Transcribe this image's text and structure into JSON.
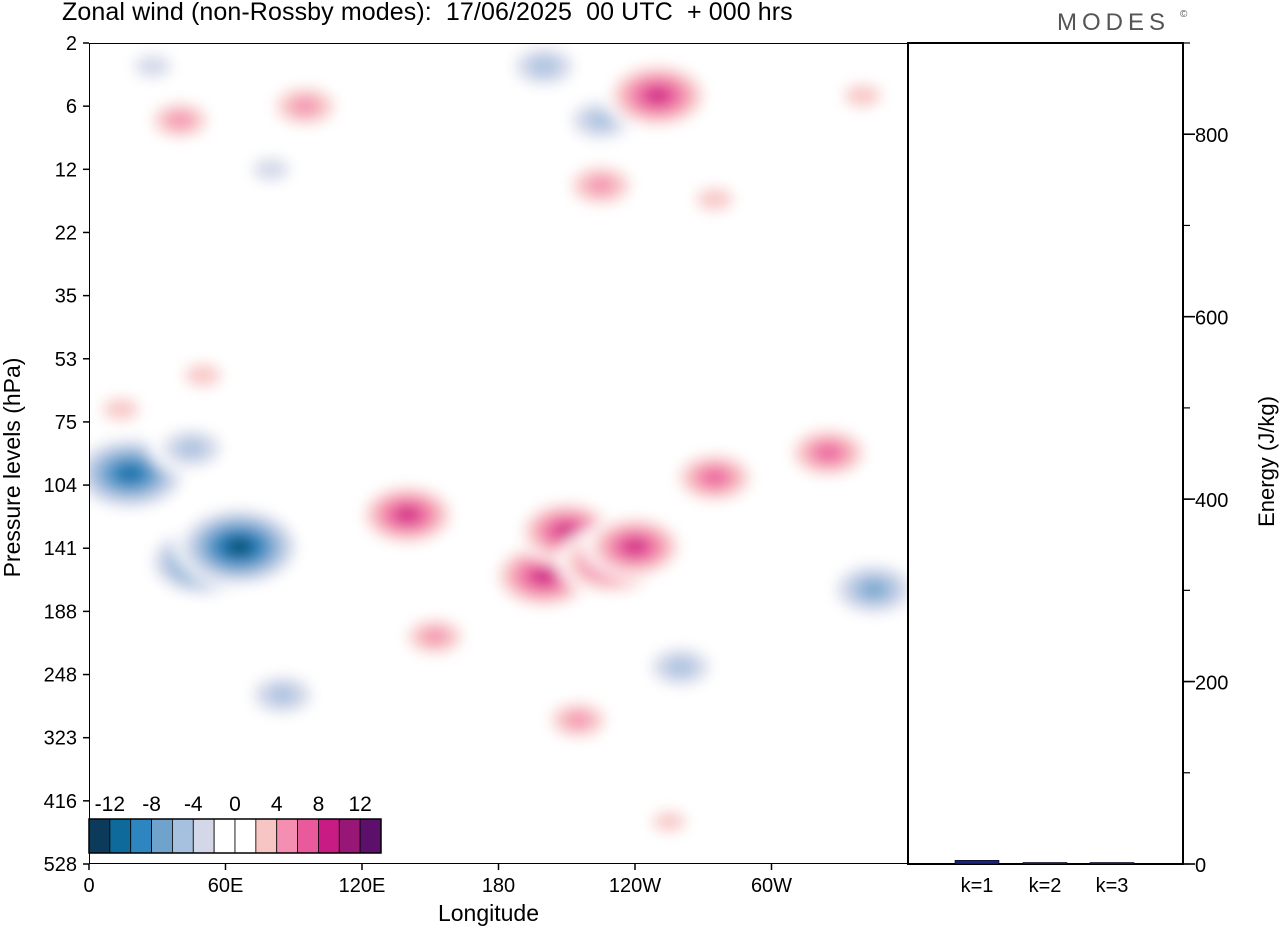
{
  "header": {
    "title": "Zonal wind (non-Rossby modes):  17/06/2025  00 UTC  + 000 hrs",
    "brand": "MODES",
    "brand_mark": "©"
  },
  "chart_data": [
    {
      "type": "heatmap",
      "title": "Zonal wind (non-Rossby modes):  17/06/2025  00 UTC  + 000 hrs",
      "xlabel": "Longitude",
      "ylabel": "Pressure levels (hPa)",
      "x_ticks": [
        "0",
        "60E",
        "120E",
        "180",
        "120W",
        "60W"
      ],
      "x_tick_degrees": [
        0,
        60,
        120,
        180,
        240,
        300
      ],
      "x_range_degrees": [
        0,
        360
      ],
      "y_ticks": [
        "2",
        "6",
        "12",
        "22",
        "35",
        "53",
        "75",
        "104",
        "141",
        "188",
        "248",
        "323",
        "416",
        "528"
      ],
      "colorbar": {
        "labels": [
          "-12",
          "-8",
          "-4",
          "0",
          "4",
          "8",
          "12"
        ],
        "levels": [
          -14,
          -12,
          -10,
          -8,
          -6,
          -4,
          -2,
          0,
          2,
          4,
          6,
          8,
          10,
          12,
          14
        ],
        "colors": [
          "#0c3a5b",
          "#0f6a9c",
          "#2e86c1",
          "#6fa3cc",
          "#a6c1df",
          "#d3d7e8",
          "#ffffff",
          "#ffffff",
          "#f7c6c4",
          "#f48fb1",
          "#e85a9b",
          "#c81b83",
          "#981675",
          "#5c0f6b"
        ],
        "label_levels": [
          -12,
          -8,
          -4,
          0,
          4,
          8,
          12
        ]
      },
      "features": [
        {
          "lon": 18,
          "plev": 98,
          "value": -12
        },
        {
          "lon": 45,
          "plev": 86,
          "value": -6
        },
        {
          "lon": 50,
          "plev": 150,
          "value": -11
        },
        {
          "lon": 66,
          "plev": 140,
          "value": -13
        },
        {
          "lon": 85,
          "plev": 270,
          "value": -6
        },
        {
          "lon": 28,
          "plev": 3,
          "value": -4
        },
        {
          "lon": 80,
          "plev": 12,
          "value": -4
        },
        {
          "lon": 200,
          "plev": 3,
          "value": -6
        },
        {
          "lon": 225,
          "plev": 7,
          "value": -6
        },
        {
          "lon": 345,
          "plev": 170,
          "value": -8
        },
        {
          "lon": 260,
          "plev": 240,
          "value": -6
        },
        {
          "lon": 140,
          "plev": 120,
          "value": 9
        },
        {
          "lon": 152,
          "plev": 210,
          "value": 5
        },
        {
          "lon": 200,
          "plev": 160,
          "value": 10
        },
        {
          "lon": 210,
          "plev": 130,
          "value": 9
        },
        {
          "lon": 230,
          "plev": 150,
          "value": 10
        },
        {
          "lon": 240,
          "plev": 140,
          "value": 9
        },
        {
          "lon": 215,
          "plev": 300,
          "value": 5
        },
        {
          "lon": 275,
          "plev": 100,
          "value": 7
        },
        {
          "lon": 325,
          "plev": 88,
          "value": 7
        },
        {
          "lon": 250,
          "plev": 5,
          "value": 10
        },
        {
          "lon": 225,
          "plev": 14,
          "value": 6
        },
        {
          "lon": 275,
          "plev": 16,
          "value": 4
        },
        {
          "lon": 95,
          "plev": 6,
          "value": 6
        },
        {
          "lon": 40,
          "plev": 7,
          "value": 5
        },
        {
          "lon": 50,
          "plev": 58,
          "value": 4
        },
        {
          "lon": 14,
          "plev": 70,
          "value": 4
        },
        {
          "lon": 340,
          "plev": 5,
          "value": 4
        },
        {
          "lon": 255,
          "plev": 450,
          "value": 3
        }
      ]
    },
    {
      "type": "bar",
      "categories": [
        "k=1",
        "k=2",
        "k=3"
      ],
      "values": [
        4,
        1.5,
        1
      ],
      "ylabel": "Energy (J/kg)",
      "ylim": [
        0,
        900
      ],
      "y_ticks": [
        0,
        200,
        400,
        600,
        800
      ],
      "y_minor_step": 100,
      "bar_color": "#1a237e"
    }
  ]
}
